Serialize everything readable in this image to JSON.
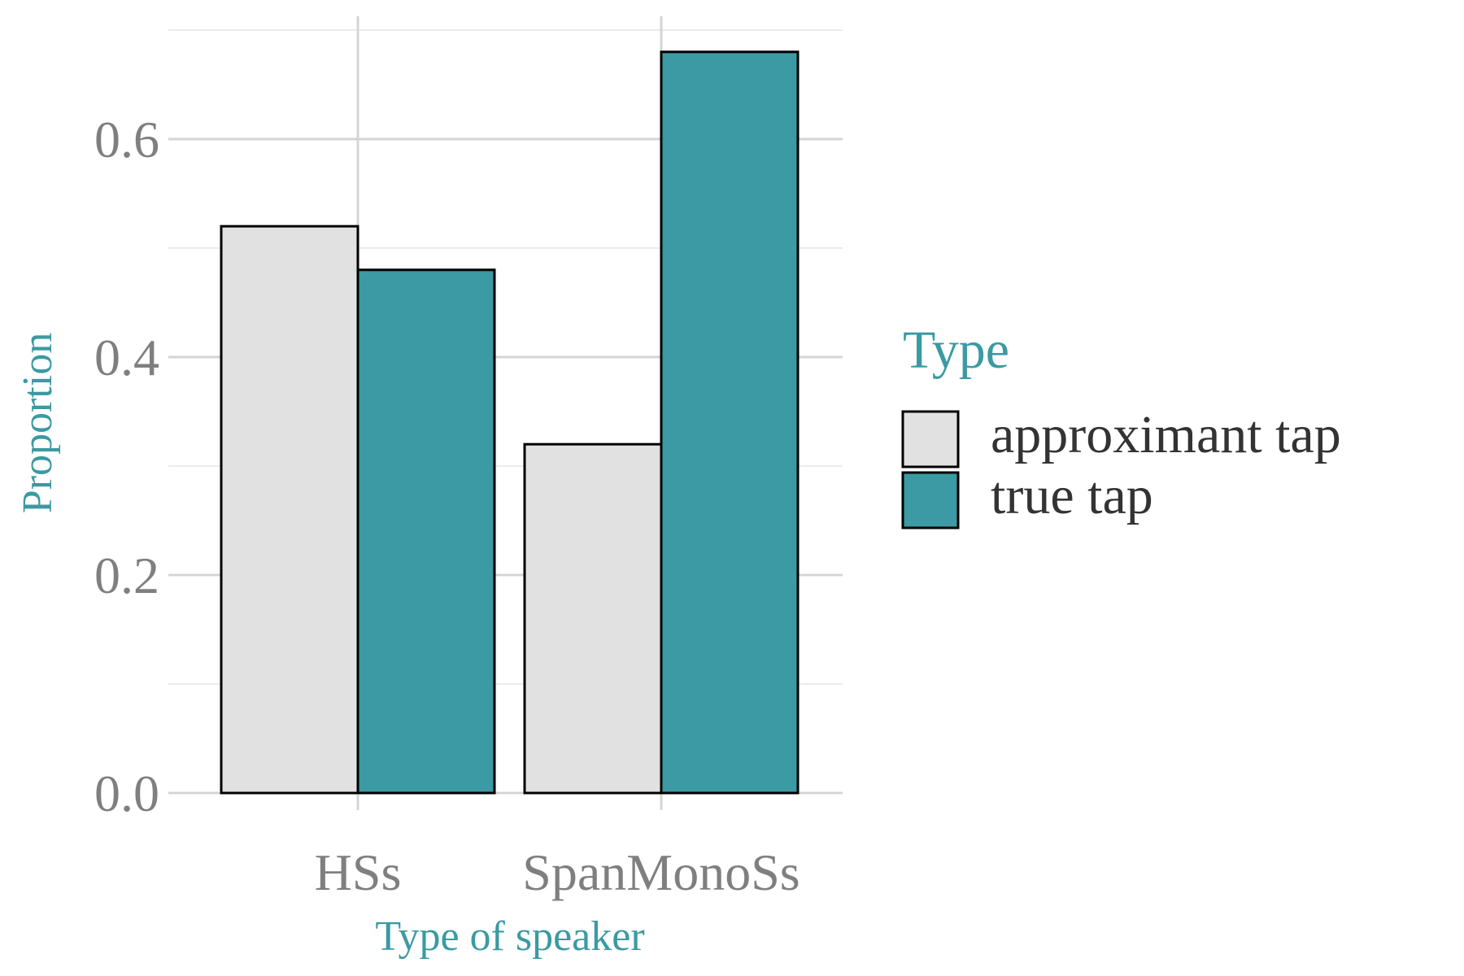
{
  "chart_data": {
    "type": "bar",
    "categories": [
      "HSs",
      "SpanMonoSs"
    ],
    "series": [
      {
        "name": "approximant tap",
        "values": [
          0.52,
          0.32
        ],
        "color": "#e1e1e1"
      },
      {
        "name": "true tap",
        "values": [
          0.48,
          0.68
        ],
        "color": "#3b9aa3"
      }
    ],
    "xlabel": "Type of speaker",
    "ylabel": "Proportion",
    "ylim": [
      0,
      0.7
    ],
    "yticks": [
      0.0,
      0.2,
      0.4,
      0.6
    ],
    "ytick_labels": [
      "0.0",
      "0.2",
      "0.4",
      "0.6"
    ],
    "legend_title": "Type",
    "legend_position": "right",
    "grid": true,
    "title_color": "#3b9aa3",
    "bar_outline_color": "#000000"
  }
}
